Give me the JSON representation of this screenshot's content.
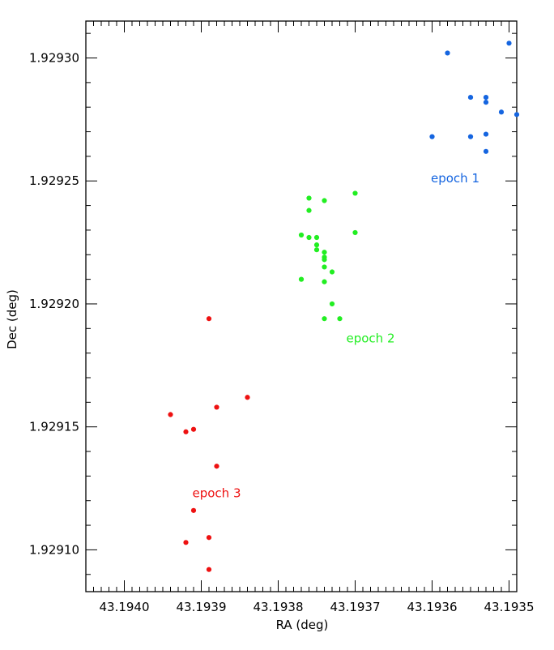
{
  "chart_data": {
    "type": "scatter",
    "xlabel": "RA (deg)",
    "ylabel": "Dec (deg)",
    "xlim": [
      43.19405,
      43.19349
    ],
    "ylim": [
      1.929083,
      1.929315
    ],
    "x_ticks": [
      "43.1940",
      "43.1939",
      "43.1938",
      "43.1937",
      "43.1936",
      "43.1935"
    ],
    "x_tick_values": [
      43.194,
      43.1939,
      43.1938,
      43.1937,
      43.1936,
      43.1935
    ],
    "y_ticks": [
      "1.92910",
      "1.92915",
      "1.92920",
      "1.92925",
      "1.92930"
    ],
    "y_tick_values": [
      1.9291,
      1.92915,
      1.9292,
      1.92925,
      1.9293
    ],
    "grid": false,
    "series": [
      {
        "name": "epoch 1",
        "color": "#1565e0",
        "label_at": [
          43.19357,
          1.929251
        ],
        "points": [
          [
            43.1936,
            1.929268
          ],
          [
            43.19358,
            1.929302
          ],
          [
            43.19355,
            1.929284
          ],
          [
            43.19355,
            1.929268
          ],
          [
            43.19353,
            1.929262
          ],
          [
            43.19353,
            1.929269
          ],
          [
            43.19353,
            1.929284
          ],
          [
            43.19353,
            1.929282
          ],
          [
            43.19351,
            1.929278
          ],
          [
            43.1935,
            1.929306
          ],
          [
            43.19349,
            1.929277
          ]
        ]
      },
      {
        "name": "epoch 2",
        "color": "#22ee22",
        "label_at": [
          43.19368,
          1.929186
        ],
        "points": [
          [
            43.19376,
            1.929243
          ],
          [
            43.19376,
            1.929238
          ],
          [
            43.19374,
            1.929242
          ],
          [
            43.1937,
            1.929245
          ],
          [
            43.1937,
            1.929229
          ],
          [
            43.19377,
            1.929228
          ],
          [
            43.19376,
            1.929227
          ],
          [
            43.19375,
            1.929227
          ],
          [
            43.19375,
            1.929224
          ],
          [
            43.19375,
            1.929222
          ],
          [
            43.19374,
            1.929221
          ],
          [
            43.19374,
            1.929219
          ],
          [
            43.19374,
            1.929218
          ],
          [
            43.19374,
            1.929215
          ],
          [
            43.19373,
            1.929213
          ],
          [
            43.19377,
            1.92921
          ],
          [
            43.19374,
            1.929209
          ],
          [
            43.19373,
            1.9292
          ],
          [
            43.19374,
            1.929194
          ],
          [
            43.19372,
            1.929194
          ]
        ]
      },
      {
        "name": "epoch 3",
        "color": "#ee1111",
        "label_at": [
          43.19388,
          1.929123
        ],
        "points": [
          [
            43.19389,
            1.929194
          ],
          [
            43.19384,
            1.929162
          ],
          [
            43.19388,
            1.929158
          ],
          [
            43.19394,
            1.929155
          ],
          [
            43.19391,
            1.929149
          ],
          [
            43.19392,
            1.929148
          ],
          [
            43.19388,
            1.929134
          ],
          [
            43.19391,
            1.929116
          ],
          [
            43.19392,
            1.929103
          ],
          [
            43.19389,
            1.929105
          ],
          [
            43.19389,
            1.929092
          ]
        ]
      }
    ]
  }
}
